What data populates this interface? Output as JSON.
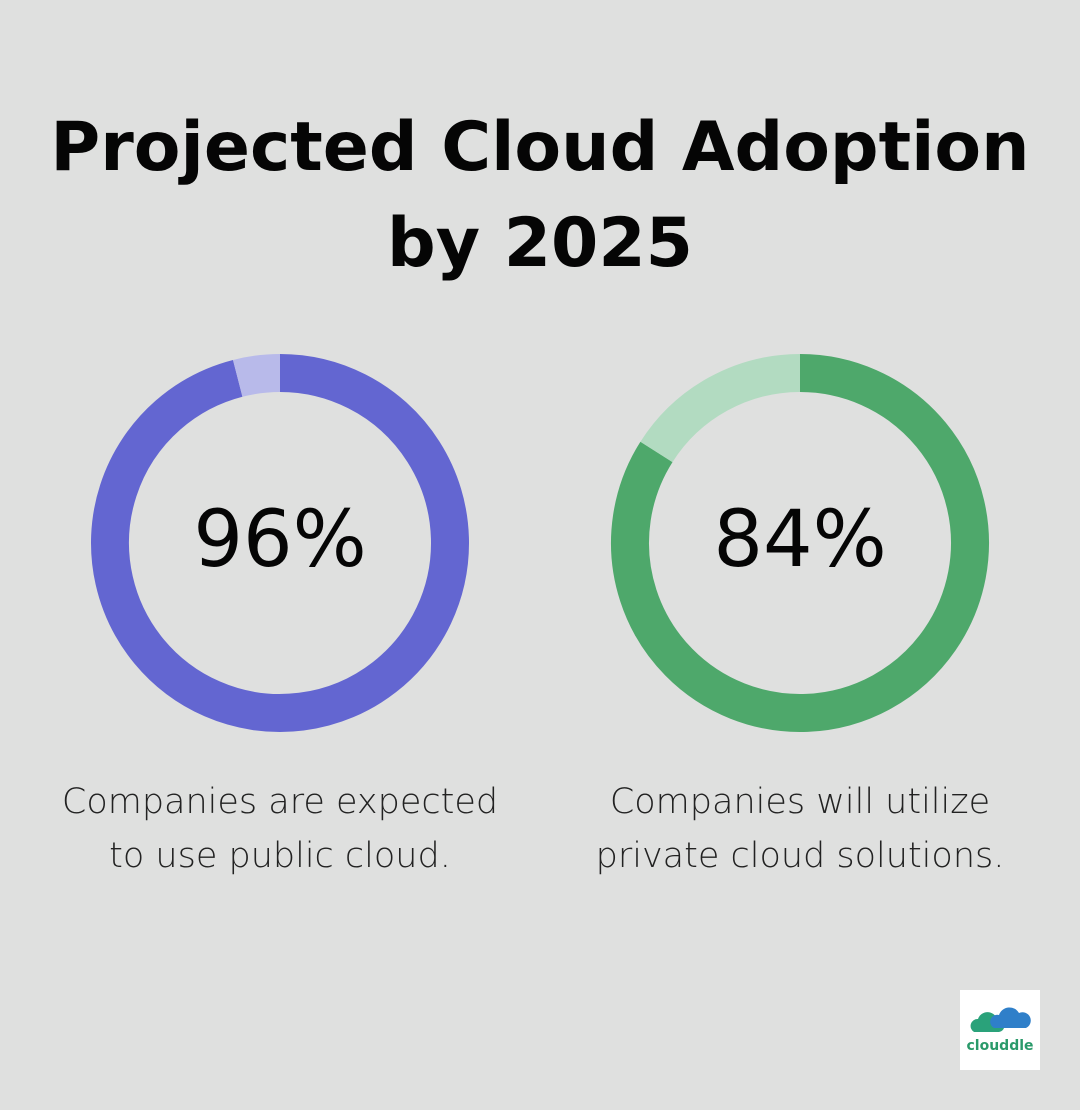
{
  "title_line1": "Projected Cloud Adoption",
  "title_line2": "by 2025",
  "chart_data": [
    {
      "type": "pie",
      "variant": "donut",
      "values": [
        96,
        4
      ],
      "label": "96%",
      "caption_line1": "Companies are expected",
      "caption_line2": "to use public cloud.",
      "colors": [
        "#6366d1",
        "#b8baea"
      ]
    },
    {
      "type": "pie",
      "variant": "donut",
      "values": [
        84,
        16
      ],
      "label": "84%",
      "caption_line1": "Companies will utilize",
      "caption_line2": "private cloud solutions.",
      "colors": [
        "#4ea86b",
        "#b2dbc1"
      ]
    }
  ],
  "logo": {
    "text": "clouddle"
  }
}
